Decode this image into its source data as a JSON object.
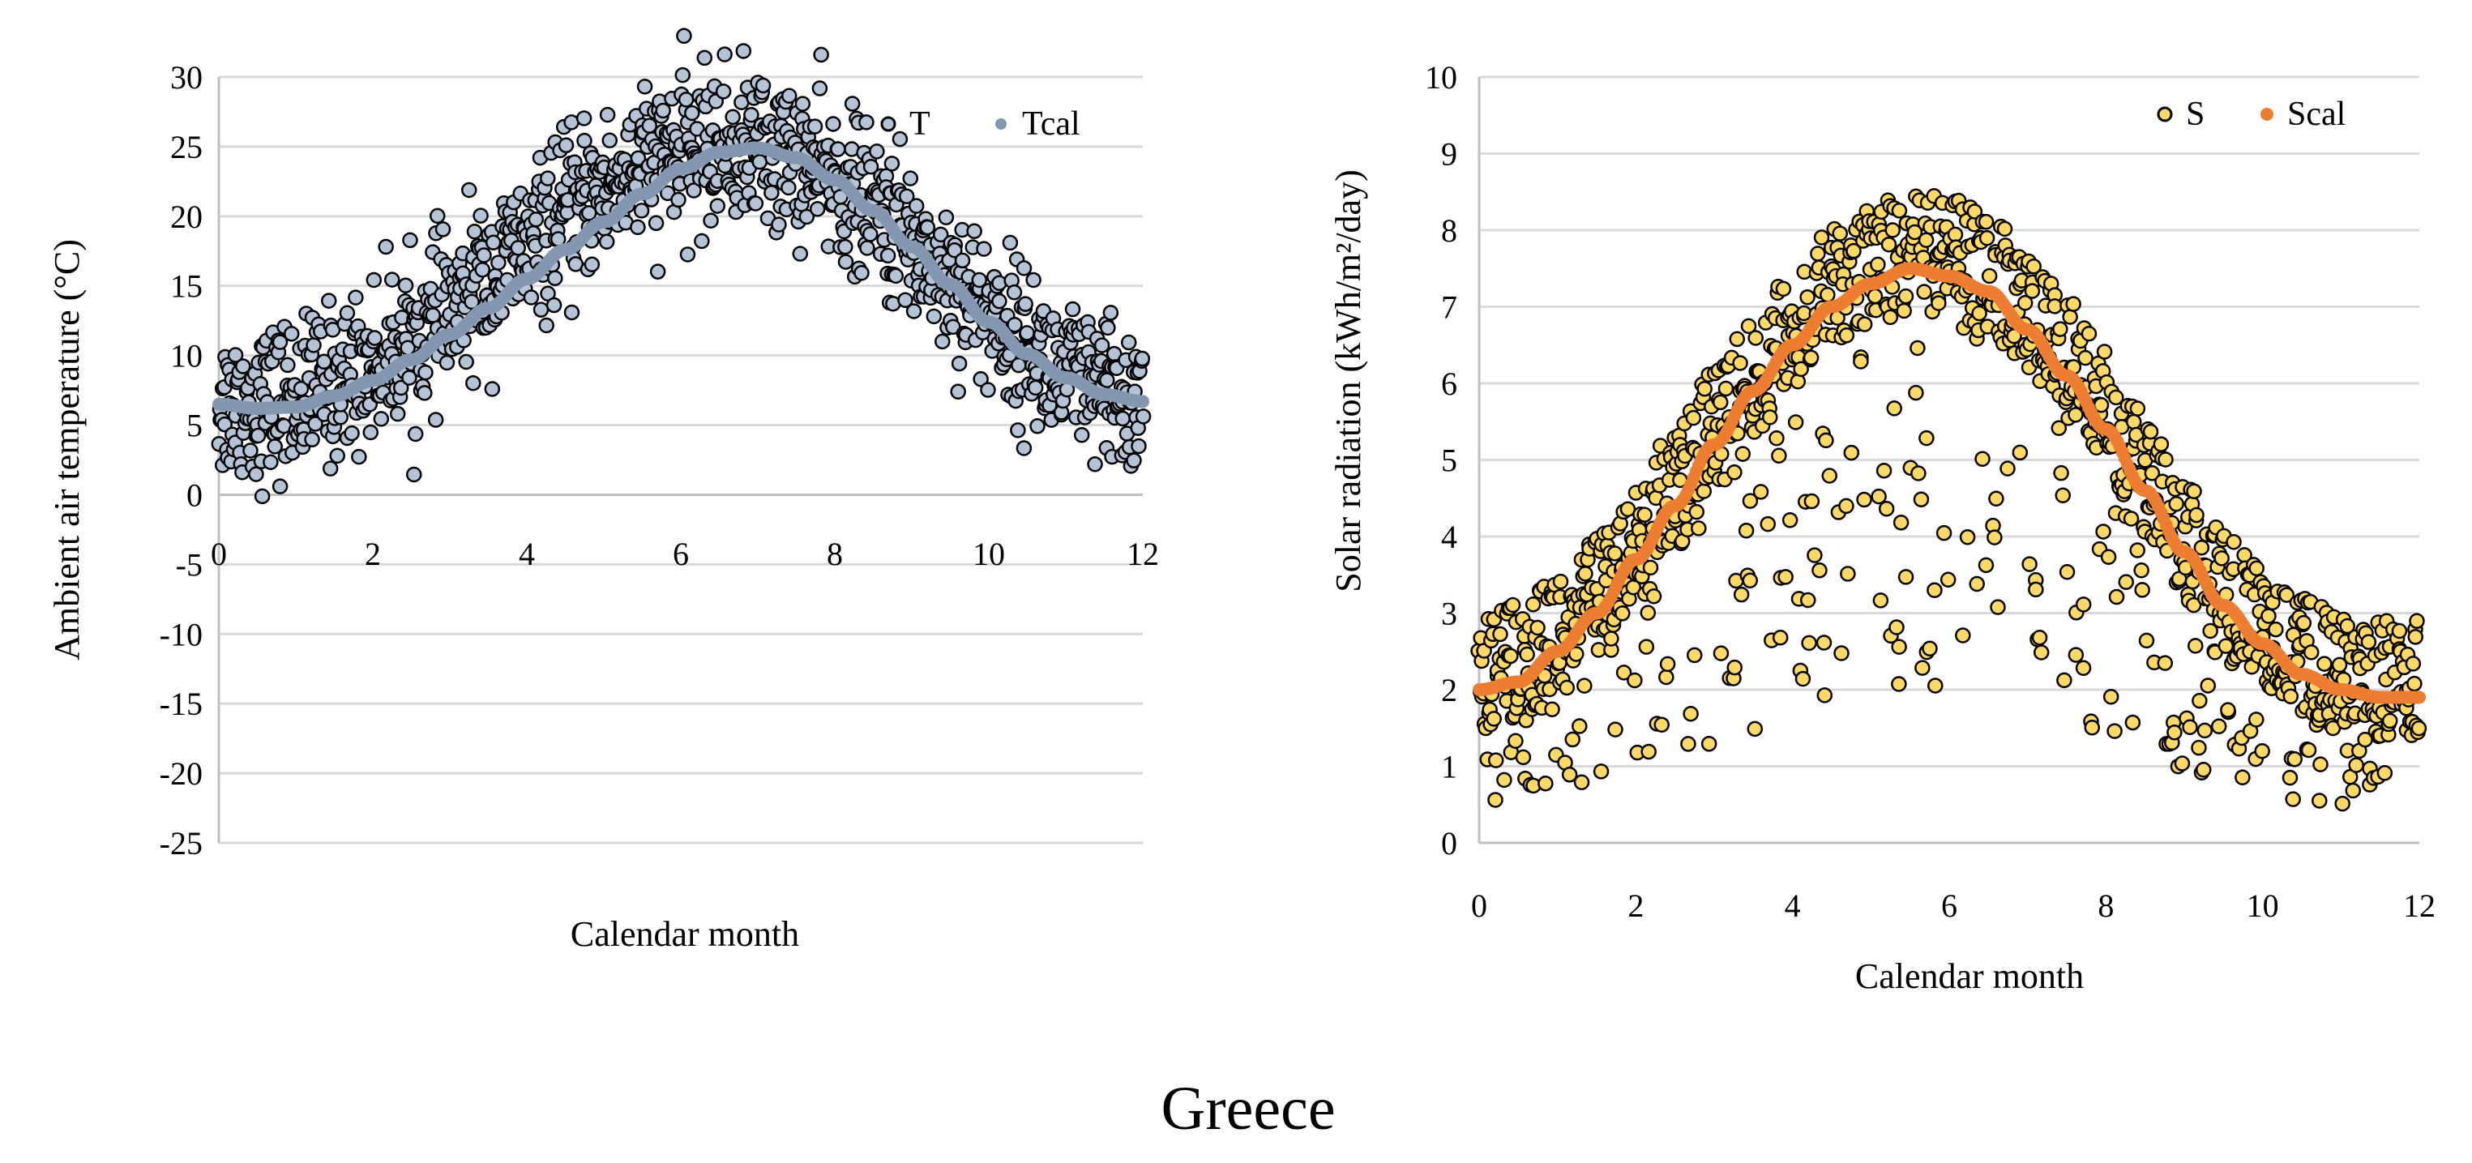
{
  "figure": {
    "caption": "Greece"
  },
  "chart_data": [
    {
      "type": "scatter",
      "xlabel": "Calendar month",
      "ylabel": "Ambient air temperature (°C)",
      "xlim": [
        0,
        12
      ],
      "ylim": [
        -25,
        30
      ],
      "xticks": [
        "0",
        "2",
        "4",
        "6",
        "8",
        "10",
        "12"
      ],
      "yticks": [
        "30",
        "25",
        "20",
        "15",
        "10",
        "5",
        "0",
        "-5",
        "-10",
        "-15",
        "-20",
        "-25"
      ],
      "grid": true,
      "legend_position": "top-right",
      "series": [
        {
          "name": "T",
          "kind": "observed",
          "color": "#b4c3d6",
          "edge": "#000000",
          "model": "daily observations scattered ±5 °C around the fitted curve",
          "x": [
            0.1,
            0.5,
            1.0,
            1.5,
            2.0,
            2.5,
            3.0,
            3.5,
            4.0,
            4.5,
            5.0,
            5.5,
            6.0,
            6.5,
            7.0,
            7.5,
            8.0,
            8.5,
            9.0,
            9.5,
            10.0,
            10.5,
            11.0,
            11.5,
            11.9
          ],
          "y": [
            6.5,
            6.5,
            7,
            8,
            9.5,
            11,
            13,
            15.5,
            17.5,
            20,
            22,
            23.5,
            24.5,
            25,
            25,
            24,
            22.5,
            20.5,
            18,
            15.5,
            13,
            10.5,
            8.5,
            7,
            6.5
          ],
          "spread": 5
        },
        {
          "name": "Tcal",
          "kind": "fitted",
          "color": "#8497b0",
          "x": [
            0,
            0.5,
            1,
            1.5,
            2,
            2.5,
            3,
            3.5,
            4,
            4.5,
            5,
            5.5,
            6,
            6.5,
            7,
            7.5,
            8,
            8.5,
            9,
            9.5,
            10,
            10.5,
            11,
            11.5,
            12
          ],
          "y": [
            6.5,
            6.2,
            6.3,
            7.1,
            8.2,
            9.7,
            11.5,
            13.4,
            15.5,
            17.6,
            19.6,
            21.6,
            23.4,
            24.6,
            24.9,
            24.2,
            22.6,
            20.4,
            17.8,
            15.1,
            12.4,
            10.1,
            8.4,
            7.2,
            6.7
          ]
        }
      ]
    },
    {
      "type": "scatter",
      "xlabel": "Calendar month",
      "ylabel": "Solar radiation (kWh/m²/day)",
      "xlim": [
        0,
        12
      ],
      "ylim": [
        0,
        10
      ],
      "xticks": [
        "0",
        "2",
        "4",
        "6",
        "8",
        "10",
        "12"
      ],
      "yticks": [
        "10",
        "9",
        "8",
        "7",
        "6",
        "5",
        "4",
        "3",
        "2",
        "1",
        "0"
      ],
      "grid": true,
      "legend_position": "top-right",
      "series": [
        {
          "name": "S",
          "kind": "observed",
          "color": "#ffd966",
          "edge": "#000000",
          "model": "daily observations; upper envelope about 1 kWh above the fitted curve, cloudy days scattered well below",
          "x": [
            0,
            0.5,
            1,
            1.5,
            2,
            2.5,
            3,
            3.5,
            4,
            4.5,
            5,
            5.5,
            6,
            6.5,
            7,
            7.5,
            8,
            8.5,
            9,
            9.5,
            10,
            10.5,
            11,
            11.5,
            12
          ],
          "y": [
            2.0,
            2.1,
            2.5,
            3.0,
            3.7,
            4.4,
            5.2,
            5.9,
            6.5,
            7.0,
            7.3,
            7.5,
            7.4,
            7.2,
            6.7,
            6.1,
            5.4,
            4.6,
            3.8,
            3.1,
            2.6,
            2.2,
            2.0,
            1.9,
            1.9
          ],
          "spread": 1.2
        },
        {
          "name": "Scal",
          "kind": "fitted",
          "color": "#ed7d31",
          "x": [
            0,
            0.5,
            1,
            1.5,
            2,
            2.5,
            3,
            3.5,
            4,
            4.5,
            5,
            5.5,
            6,
            6.5,
            7,
            7.5,
            8,
            8.5,
            9,
            9.5,
            10,
            10.5,
            11,
            11.5,
            12
          ],
          "y": [
            2.0,
            2.1,
            2.5,
            3.0,
            3.7,
            4.4,
            5.2,
            5.9,
            6.5,
            7.0,
            7.3,
            7.5,
            7.4,
            7.2,
            6.7,
            6.1,
            5.4,
            4.6,
            3.8,
            3.1,
            2.6,
            2.2,
            2.0,
            1.9,
            1.9
          ]
        }
      ]
    }
  ]
}
